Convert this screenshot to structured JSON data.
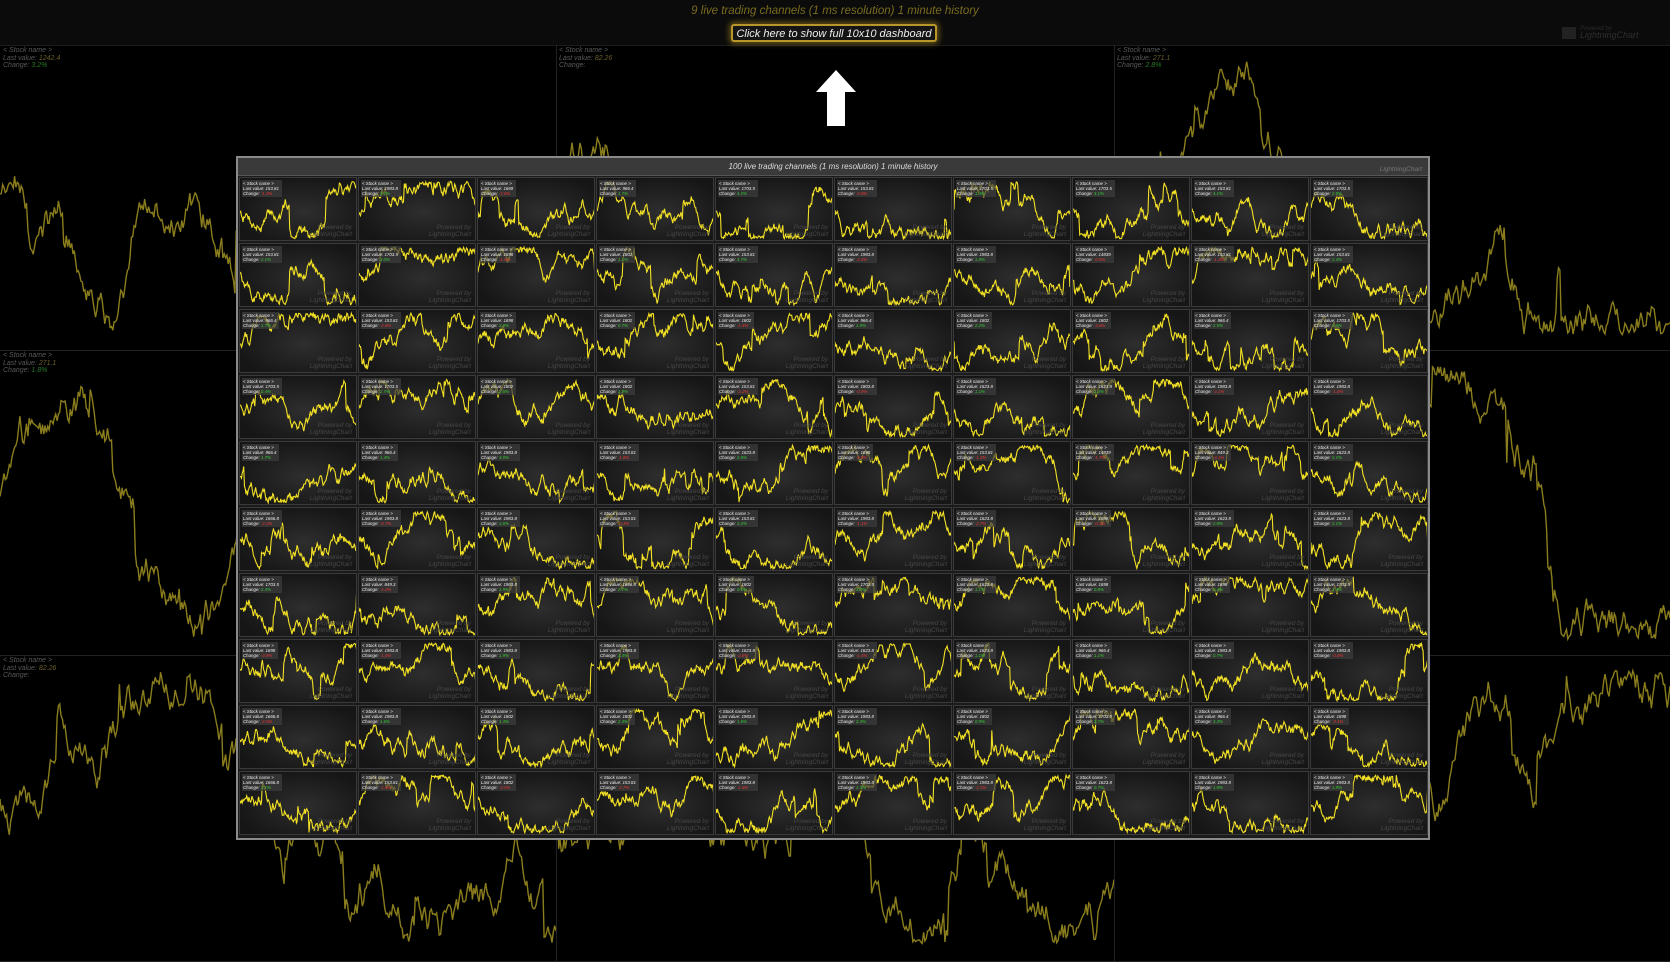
{
  "background": {
    "title": "9 live trading channels (1 ms resolution) 1 minute history",
    "show_button_label": "Click here to show full 10x10 dashboard",
    "logo_text": "LightningChart",
    "logo_text_top": "Powered by",
    "line_color": "#8a7d1d",
    "channels": [
      {
        "name": "< Stock name >",
        "last_label": "Last value:",
        "last_value": "1242.4",
        "change_label": "Change:",
        "change_value": "3.2%",
        "change_sign": "pos"
      },
      {
        "name": "< Stock name >",
        "last_label": "Last value:",
        "last_value": "82.26",
        "change_label": "Change:",
        "change_value": "",
        "change_sign": "neg"
      },
      {
        "name": "< Stock name >",
        "last_label": "Last value:",
        "last_value": "271.1",
        "change_label": "Change:",
        "change_value": "2.8%",
        "change_sign": "pos"
      },
      {
        "name": "< Stock name >",
        "last_label": "Last value:",
        "last_value": "271.1",
        "change_label": "Change:",
        "change_value": "1.8%",
        "change_sign": "pos"
      },
      {
        "name": "",
        "last_label": "",
        "last_value": "",
        "change_label": "",
        "change_value": "",
        "change_sign": "pos"
      },
      {
        "name": "",
        "last_label": "",
        "last_value": "",
        "change_label": "",
        "change_value": "",
        "change_sign": "pos"
      },
      {
        "name": "< Stock name >",
        "last_label": "Last value:",
        "last_value": "82.26",
        "change_label": "Change:",
        "change_value": "",
        "change_sign": "neg"
      },
      {
        "name": "",
        "last_label": "",
        "last_value": "",
        "change_label": "",
        "change_value": "",
        "change_sign": "pos"
      },
      {
        "name": "",
        "last_label": "",
        "last_value": "",
        "change_label": "",
        "change_value": "",
        "change_sign": "pos"
      }
    ]
  },
  "dashboard": {
    "title": "100 live trading channels (1 ms resolution) 1 minute history",
    "logo_text": "LightningChart",
    "line_color": "#f3e125",
    "tile_template": {
      "name": "< Stock name >",
      "last_label": "Last value:",
      "change_label": "Change:",
      "watermark_top": "Powered by",
      "watermark_bottom": "LightningChart"
    },
    "last_values": [
      "153.81",
      "1983.8",
      "1669",
      "966.4",
      "1703.5",
      "153.81",
      "1703.5",
      "1703.5",
      "153.81",
      "1703.5",
      "153.81",
      "1703.5",
      "1698",
      "1802",
      "153.81",
      "1983.8",
      "1983.8",
      "14839",
      "153.81",
      "153.81",
      "966.4",
      "153.81",
      "1698",
      "1802",
      "1802",
      "966.4",
      "1802",
      "1802",
      "966.4",
      "1703.5",
      "1703.5",
      "1703.5",
      "1802",
      "1802",
      "153.81",
      "1803.8",
      "1623.8",
      "1623.8",
      "1983.8",
      "1983.8",
      "966.4",
      "966.4",
      "1983.8",
      "153.81",
      "1623.8",
      "1698",
      "153.81",
      "14839",
      "849.3",
      "1623.8",
      "1666.8",
      "1983.8",
      "1983.8",
      "153.81",
      "153.81",
      "1983.8",
      "1623.8",
      "1698",
      "1623.8",
      "1623.8",
      "1703.5",
      "849.3",
      "1983.8",
      "1666.8",
      "1802",
      "1703.5",
      "1623.8",
      "1698",
      "1698",
      "1703.5",
      "1698",
      "1983.8",
      "1983.8",
      "1983.8",
      "1623.8",
      "1623.8",
      "1623.8",
      "966.4",
      "1983.8",
      "1983.8",
      "1666.8",
      "1983.8",
      "1802",
      "1802",
      "1983.8",
      "1983.8",
      "1802",
      "1703.5",
      "966.4",
      "1698",
      "1666.8",
      "153.81",
      "1802",
      "153.81",
      "1983.8",
      "1983.8",
      "1983.8",
      "1623.8",
      "1983.8",
      "1983.8"
    ],
    "changes": [
      "-1.2%",
      "3.1%",
      "-2.6%",
      "1.7%",
      "4.2%",
      "-0.8%",
      "1.4%",
      "3.1%",
      "4.1%",
      "2.9%",
      "2.1%",
      "3.0%",
      "-1.5%",
      "1.1%",
      "3.7%",
      "-2.4%",
      "1.8%",
      "-0.6%",
      "-1.3%",
      "2.4%",
      "1.7%",
      "-2.6%",
      "3.3%",
      "0.7%",
      "-1.4%",
      "1.9%",
      "2.2%",
      "-3.8%",
      "2.5%",
      "1.6%",
      "0.4%",
      "2.7%",
      "2.6%",
      "1.9%",
      "-2.2%",
      "-0.9%",
      "1.1%",
      "2.3%",
      "-3.1%",
      "-1.6%",
      "1.7%",
      "1.4%",
      "3.0%",
      "-1.6%",
      "2.6%",
      "-2.9%",
      "-1.2%",
      "-1.7%",
      "-4.1%",
      "2.1%",
      "-2.2%",
      "-0.7%",
      "1.6%",
      "-3.3%",
      "3.2%",
      "-1.1%",
      "-2.7%",
      "-0.3%",
      "2.8%",
      "2.1%",
      "2.3%",
      "-1.2%",
      "1.9%",
      "2.7%",
      "0.6%",
      "3.2%",
      "1.1%",
      "0.8%",
      "2.4%",
      "1.4%",
      "-0.8%",
      "-1.6%",
      "1.9%",
      "3.4%",
      "-2.8%",
      "-1.4%",
      "1.1%",
      "1.1%",
      "0.7%",
      "-0.8%",
      "-2.5%",
      "1.6%",
      "1.3%",
      "2.4%",
      "1.6%",
      "3.3%",
      "0.9%",
      "3.7%",
      "3.3%",
      "-3.1%",
      "1.1%",
      "-1.5%",
      "-3.4%",
      "-2.7%",
      "-1.6%",
      "1.7%",
      "-2.1%",
      "0.7%",
      "1.8%",
      "1.8%"
    ]
  }
}
